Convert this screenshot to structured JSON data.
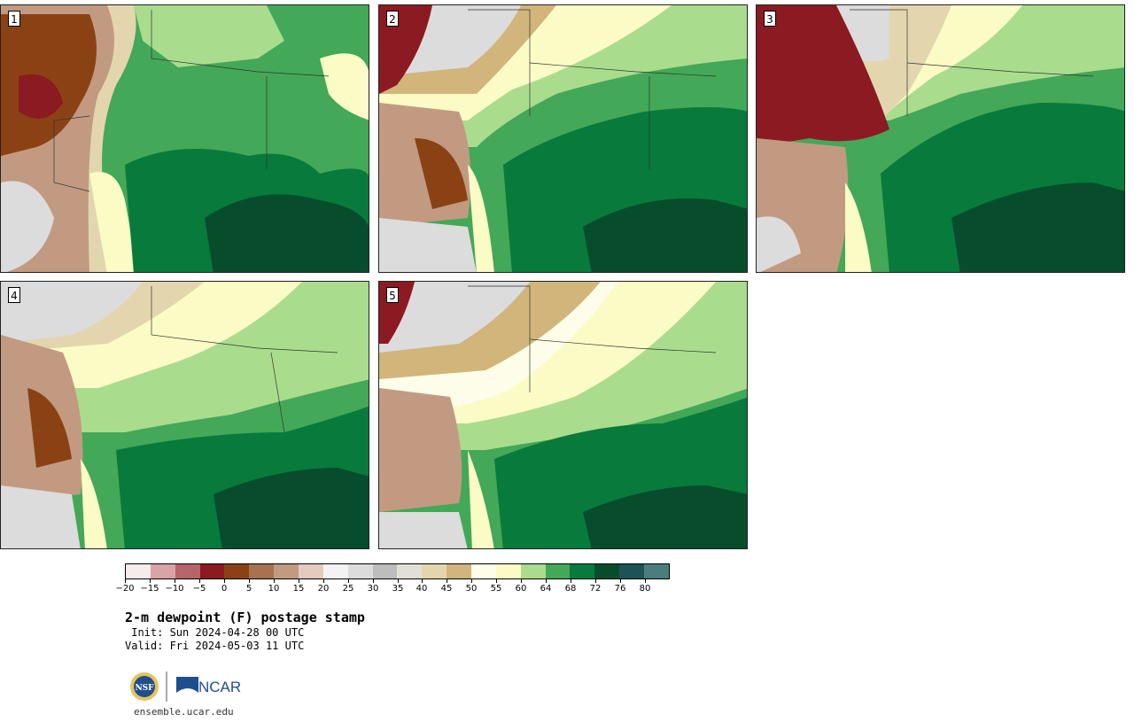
{
  "panels": [
    {
      "label": "1"
    },
    {
      "label": "2"
    },
    {
      "label": "3"
    },
    {
      "label": "4"
    },
    {
      "label": "5"
    }
  ],
  "colorbar": {
    "colors": [
      "#f5eceb",
      "#d9a3a8",
      "#b86468",
      "#8c1a22",
      "#8a4214",
      "#a8714f",
      "#c29a82",
      "#e5cbbd",
      "#f3f3f3",
      "#dcdcdc",
      "#bdbdbd",
      "#e2e0d6",
      "#e3d6af",
      "#d1b57b",
      "#fefde9",
      "#fbfbc6",
      "#a9dd8d",
      "#43a857",
      "#087a3c",
      "#074d2b",
      "#1c5356",
      "#4b7c80"
    ],
    "tick_labels": [
      "−20",
      "−15",
      "−10",
      "−5",
      "0",
      "5",
      "10",
      "15",
      "20",
      "25",
      "30",
      "35",
      "40",
      "45",
      "50",
      "55",
      "60",
      "64",
      "68",
      "72",
      "76",
      "80"
    ]
  },
  "title": "2-m dewpoint (F) postage stamp",
  "init": " Init: Sun 2024-04-28 00 UTC",
  "valid": "Valid: Fri 2024-05-03 11 UTC",
  "logo": {
    "nsf_text": "NSF",
    "ncar_text": "NCAR"
  },
  "site": "ensemble.ucar.edu"
}
